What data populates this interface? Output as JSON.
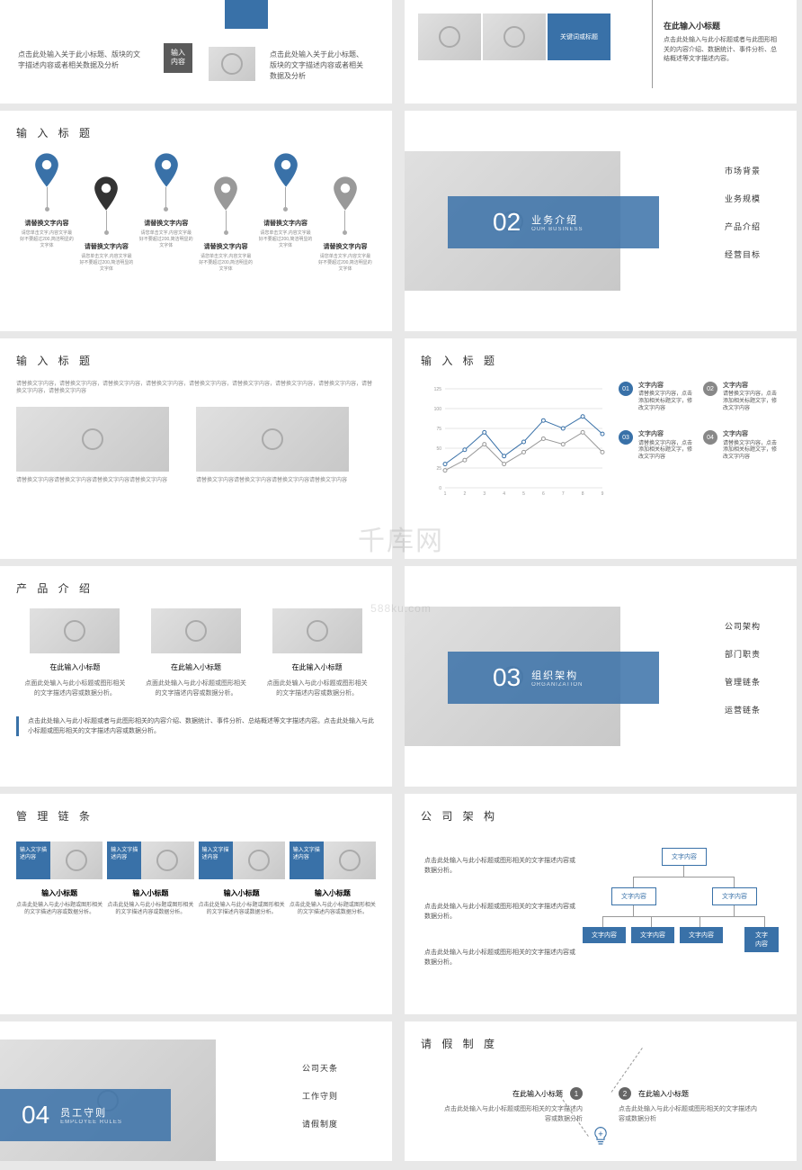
{
  "watermark": {
    "main": "千库网",
    "sub": "588ku.com",
    "prefix": ""
  },
  "colors": {
    "primary": "#3971a8",
    "gray": "#888888",
    "dark_gray": "#5a5a5a",
    "text": "#333333",
    "muted": "#666666",
    "bg": "#e8e8e8"
  },
  "slide1": {
    "label": "输入\n内容",
    "text1": "点击此处输入关于此小标题、版块的文字描述内容或者相关数据及分析",
    "text2": "点击此处输入关于此小标题、版块的文字描述内容或者相关数据及分析"
  },
  "slide2": {
    "blue_label": "关键词或标题",
    "title": "在此输入小标题",
    "text": "点击此处输入与此小标题或者与此图形相关的内容介绍、数据统计、事件分析、总结概述等文字描述内容。"
  },
  "slide3": {
    "title": "输 入 标 题",
    "pins": [
      {
        "color": "#3971a8",
        "offset": false,
        "title": "请替换文字内容",
        "text": "请您单击文字,内容文字最好不要超过200,简洁明显的文字体"
      },
      {
        "color": "#333333",
        "offset": true,
        "title": "请替换文字内容",
        "text": "请您单击文字,内容文字最好不要超过200,简洁明显的文字体"
      },
      {
        "color": "#3971a8",
        "offset": false,
        "title": "请替换文字内容",
        "text": "请您单击文字,内容文字最好不要超过200,简洁明显的文字体"
      },
      {
        "color": "#999999",
        "offset": true,
        "title": "请替换文字内容",
        "text": "请您单击文字,内容文字最好不要超过200,简洁明显的文字体"
      },
      {
        "color": "#3971a8",
        "offset": false,
        "title": "请替换文字内容",
        "text": "请您单击文字,内容文字最好不要超过200,简洁明显的文字体"
      },
      {
        "color": "#999999",
        "offset": true,
        "title": "请替换文字内容",
        "text": "请您单击文字,内容文字最好不要超过200,简洁明显的文字体"
      }
    ]
  },
  "slide4": {
    "num": "02",
    "cn": "业务介绍",
    "en": "OUR BUSINESS",
    "items": [
      "市场背景",
      "业务规模",
      "产品介绍",
      "经营目标"
    ]
  },
  "slide5": {
    "title": "输 入 标 题",
    "top": "请替换文字内容，请替换文字内容，请替换文字内容，请替换文字内容，请替换文字内容，请替换文字内容，请替换文字内容，请替换文字内容，请替换文字内容，请替换文字内容",
    "txt1": "请替换文字内容请替换文字内容请替换文字内容请替换文字内容",
    "txt2": "请替换文字内容请替换文字内容请替换文字内容请替换文字内容"
  },
  "slide6": {
    "title": "输 入 标 题",
    "chart": {
      "type": "line",
      "x": [
        1,
        2,
        3,
        4,
        5,
        6,
        7,
        8,
        9
      ],
      "ylim": [
        0,
        125
      ],
      "yticks": [
        0,
        25,
        50,
        75,
        100,
        125
      ],
      "series": [
        {
          "color": "#3971a8",
          "marker": "circle",
          "values": [
            30,
            48,
            70,
            40,
            58,
            85,
            75,
            90,
            68
          ]
        },
        {
          "color": "#999999",
          "marker": "circle",
          "values": [
            22,
            35,
            55,
            30,
            45,
            62,
            55,
            70,
            45
          ]
        }
      ],
      "grid_color": "#e5e5e5",
      "background": "#ffffff"
    },
    "items": [
      {
        "num": "01",
        "color": "blue",
        "title": "文字内容",
        "text": "请替换文字内容，点击添加相关标题文字，修改文字内容"
      },
      {
        "num": "02",
        "color": "gray",
        "title": "文字内容",
        "text": "请替换文字内容，点击添加相关标题文字，修改文字内容"
      },
      {
        "num": "03",
        "color": "blue",
        "title": "文字内容",
        "text": "请替换文字内容，点击添加相关标题文字，修改文字内容"
      },
      {
        "num": "04",
        "color": "gray",
        "title": "文字内容",
        "text": "请替换文字内容，点击添加相关标题文字，修改文字内容"
      }
    ]
  },
  "slide7": {
    "title": "产 品 介 绍",
    "cols": [
      {
        "title": "在此输入小标题",
        "text": "点面此处输入与此小标题或图形相关的文字描述内容或数据分析。"
      },
      {
        "title": "在此输入小标题",
        "text": "点面此处输入与此小标题或图形相关的文字描述内容或数据分析。"
      },
      {
        "title": "在此输入小标题",
        "text": "点面此处输入与此小标题或图形相关的文字描述内容或数据分析。"
      }
    ],
    "note": "点击此处输入与此小标题或者与此图形相关的内容介绍、数据统计、事件分析、总结概述等文字描述内容。点击此处输入与此小标题或图形相关的文字描述内容或数据分析。"
  },
  "slide8": {
    "num": "03",
    "cn": "组织架构",
    "en": "ORGANIZATION",
    "items": [
      "公司架构",
      "部门职责",
      "管理链条",
      "运营链条"
    ]
  },
  "slide9": {
    "title": "管 理 链 条",
    "cols": [
      {
        "label": "输入文字描述内容",
        "title": "输入小标题",
        "text": "点击此处输入与此小标题或图形相关的文字描述内容或数据分析。"
      },
      {
        "label": "输入文字描述内容",
        "title": "输入小标题",
        "text": "点击此处输入与此小标题或图形相关的文字描述内容或数据分析。"
      },
      {
        "label": "输入文字描述内容",
        "title": "输入小标题",
        "text": "点击此处输入与此小标题或图形相关的文字描述内容或数据分析。"
      },
      {
        "label": "输入文字描述内容",
        "title": "输入小标题",
        "text": "点击此处输入与此小标题或图形相关的文字描述内容或数据分析。"
      }
    ]
  },
  "slide10": {
    "title": "公 司 架 构",
    "left": [
      "点击此处输入与此小标题或图形相关的文字描述内容或数据分析。",
      "点击此处输入与此小标题或图形相关的文字描述内容或数据分析。",
      "点击此处输入与此小标题或图形相关的文字描述内容或数据分析。"
    ],
    "nodes": {
      "root": "文字内容",
      "l2": [
        "文字内容",
        "文字内容"
      ],
      "l3": [
        "文字内容",
        "文字内容",
        "文字内容",
        "文字内容"
      ]
    }
  },
  "slide11": {
    "num": "04",
    "cn": "员工守则",
    "en": "EMPLOYEE RULES",
    "items": [
      "公司天条",
      "工作守则",
      "请假制度"
    ]
  },
  "slide12": {
    "title": "请 假 制 度",
    "left": {
      "num": "1",
      "title": "在此输入小标题",
      "text": "点击此处输入与此小标题或图形相关的文字描述内容或数据分析"
    },
    "right": {
      "num": "2",
      "title": "在此输入小标题",
      "text": "点击此处输入与此小标题或图形相关的文字描述内容或数据分析"
    }
  }
}
